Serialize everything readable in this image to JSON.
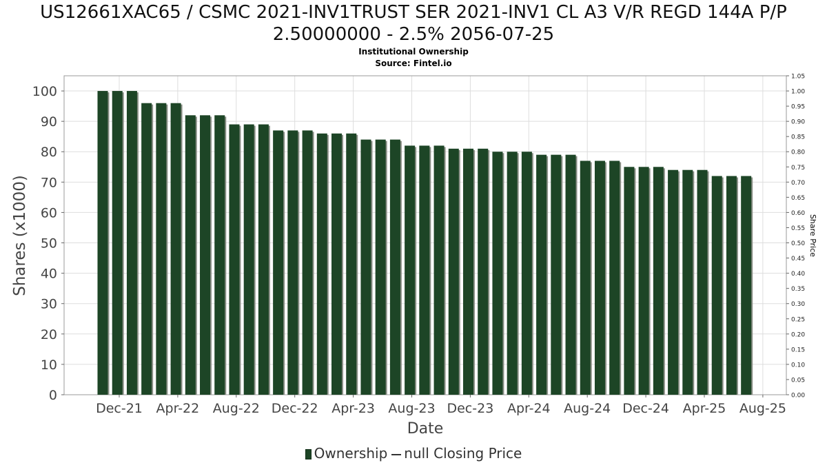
{
  "title_line1": "US12661XAC65 / CSMC 2021-INV1TRUST SER 2021-INV1 CL A3 V/R REGD 144A P/P",
  "title_line2": "2.50000000 - 2.5% 2056-07-25",
  "subtitle1": "Institutional Ownership",
  "subtitle2": "Source: Fintel.io",
  "legend": {
    "ownership": "Ownership",
    "price": "null Closing Price"
  },
  "colors": {
    "bar": "#1d4526",
    "bar_shadow": "#8a8f86",
    "grid": "#dddddd"
  },
  "chart_data": {
    "type": "bar",
    "title": "US12661XAC65 / CSMC 2021-INV1TRUST SER 2021-INV1 CL A3 V/R REGD 144A P/P 2.50000000 - 2.5% 2056-07-25",
    "subtitle": "Institutional Ownership",
    "xlabel": "Date",
    "ylabel": "Shares (x1000)",
    "y2label": "Share Price",
    "ylim": [
      0,
      105
    ],
    "y2lim": [
      0,
      1.05
    ],
    "yticks": [
      0,
      10,
      20,
      30,
      40,
      50,
      60,
      70,
      80,
      90,
      100
    ],
    "y2ticks": [
      "0.00",
      "0.05",
      "0.10",
      "0.15",
      "0.20",
      "0.25",
      "0.30",
      "0.35",
      "0.40",
      "0.45",
      "0.50",
      "0.55",
      "0.60",
      "0.65",
      "0.70",
      "0.75",
      "0.80",
      "0.85",
      "0.90",
      "0.95",
      "1.00",
      "1.05"
    ],
    "xticks": [
      "Dec-21",
      "Apr-22",
      "Aug-22",
      "Dec-22",
      "Apr-23",
      "Aug-23",
      "Dec-23",
      "Apr-24",
      "Aug-24",
      "Dec-24",
      "Apr-25",
      "Aug-25"
    ],
    "grid": true,
    "legend_position": "bottom",
    "series": [
      {
        "name": "Ownership",
        "values": [
          100,
          100,
          100,
          96,
          96,
          96,
          92,
          92,
          92,
          89,
          89,
          89,
          87,
          87,
          87,
          86,
          86,
          86,
          84,
          84,
          84,
          82,
          82,
          82,
          81,
          81,
          81,
          80,
          80,
          80,
          79,
          79,
          79,
          77,
          77,
          77,
          75,
          75,
          75,
          74,
          74,
          74,
          72,
          72,
          72
        ]
      }
    ]
  }
}
